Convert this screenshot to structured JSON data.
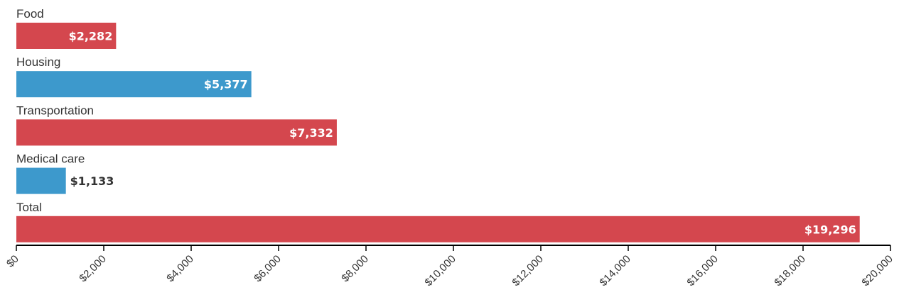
{
  "chart_data": {
    "type": "bar",
    "orientation": "horizontal",
    "categories": [
      "Food",
      "Housing",
      "Transportation",
      "Medical care",
      "Total"
    ],
    "values": [
      2282,
      5377,
      7332,
      1133,
      19296
    ],
    "value_labels": [
      "$2,282",
      "$5,377",
      "$7,332",
      "$1,133",
      "$19,296"
    ],
    "bar_colors": [
      "#d4474e",
      "#3d99cc",
      "#d4474e",
      "#3d99cc",
      "#d4474e"
    ],
    "xlim": [
      0,
      20000
    ],
    "x_ticks": [
      0,
      2000,
      4000,
      6000,
      8000,
      10000,
      12000,
      14000,
      16000,
      18000,
      20000
    ],
    "x_tick_labels": [
      "$0",
      "$2,000",
      "$4,000",
      "$6,000",
      "$8,000",
      "$10,000",
      "$12,000",
      "$14,000",
      "$16,000",
      "$18,000",
      "$20,000"
    ],
    "grid": false,
    "legend": "none"
  }
}
